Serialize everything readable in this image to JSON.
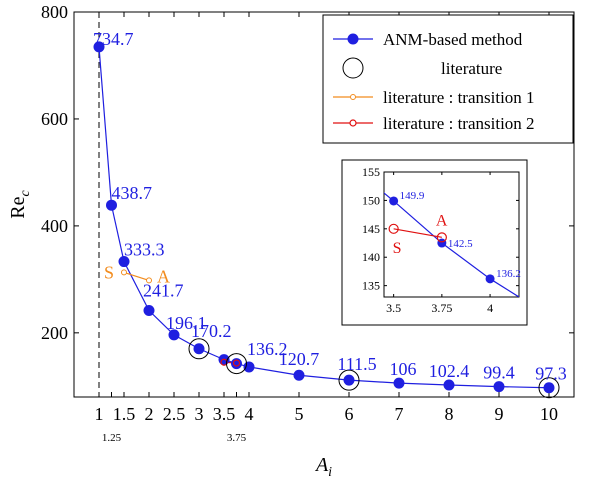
{
  "chart_data": [
    {
      "type": "scatter",
      "xlabel_main": "A",
      "xlabel_sub": "i",
      "ylabel_main": "Re",
      "ylabel_sub": "c",
      "xlim": [
        0.5,
        10.5
      ],
      "ylim": [
        80,
        800
      ],
      "x_ticks": [
        1,
        1.5,
        2,
        2.5,
        3,
        3.5,
        4,
        5,
        6,
        7,
        8,
        9,
        10
      ],
      "x_tick_labels": [
        "1",
        "1.5",
        "2",
        "2.5",
        "3",
        "3.5",
        "4",
        "5",
        "6",
        "7",
        "8",
        "9",
        "10"
      ],
      "x_minor_ticks": [
        1.25,
        3.75
      ],
      "x_minor_tick_labels": [
        "1.25",
        "3.75"
      ],
      "y_ticks": [
        200,
        400,
        600,
        800
      ],
      "y_tick_labels": [
        "200",
        "400",
        "600",
        "800"
      ],
      "dashed_vertical_x": 1,
      "legend_position": "top-right",
      "series": [
        {
          "name": "ANM-based method",
          "color": "#1f1fe0",
          "x": [
            1,
            1.25,
            1.5,
            2,
            2.5,
            3,
            3.5,
            3.75,
            4,
            5,
            6,
            7,
            8,
            9,
            10
          ],
          "y": [
            734.7,
            438.7,
            333.3,
            241.7,
            196.1,
            170.2,
            149.9,
            142.5,
            136.2,
            120.7,
            111.5,
            106,
            102.4,
            99.4,
            97.3
          ]
        },
        {
          "name": "literature",
          "color": "#000000",
          "x": [
            3,
            3.75,
            6,
            10
          ],
          "y": [
            170.2,
            142.5,
            111.5,
            97.3
          ]
        },
        {
          "name": "literature : transition 1",
          "color": "#f28c1e",
          "x": [
            1.5,
            2
          ],
          "y": [
            313,
            298
          ]
        },
        {
          "name": "literature : transition 2",
          "color": "#e01010",
          "x": [
            3.5,
            3.75
          ],
          "y": [
            145,
            143.5
          ]
        }
      ],
      "data_labels": [
        "734.7",
        "438.7",
        "333.3",
        "241.7",
        "196.1",
        "170.2",
        "136.2",
        "120.7",
        "111.5",
        "106",
        "102.4",
        "99.4",
        "97.3"
      ],
      "annotations": {
        "S": "S",
        "A": "A"
      }
    },
    {
      "type": "scatter",
      "xlim": [
        3.45,
        4.15
      ],
      "ylim": [
        133,
        155
      ],
      "x_ticks": [
        3.5,
        3.75,
        4
      ],
      "x_tick_labels": [
        "3.5",
        "3.75",
        "4"
      ],
      "y_ticks": [
        135,
        140,
        145,
        150,
        155
      ],
      "y_tick_labels": [
        "135",
        "140",
        "145",
        "150",
        "155"
      ],
      "series": [
        {
          "name": "ANM-based method",
          "color": "#1f1fe0",
          "x": [
            3.4,
            3.5,
            3.75,
            4,
            4.15
          ],
          "y": [
            152.7,
            149.9,
            142.5,
            136.2,
            133
          ]
        },
        {
          "name": "literature : transition 2",
          "color": "#e01010",
          "x": [
            3.5,
            3.75
          ],
          "y": [
            145,
            143.5
          ]
        }
      ],
      "data_labels": [
        "149.9",
        "142.5",
        "136.2"
      ],
      "annotations": {
        "S": "S",
        "A": "A"
      }
    }
  ]
}
